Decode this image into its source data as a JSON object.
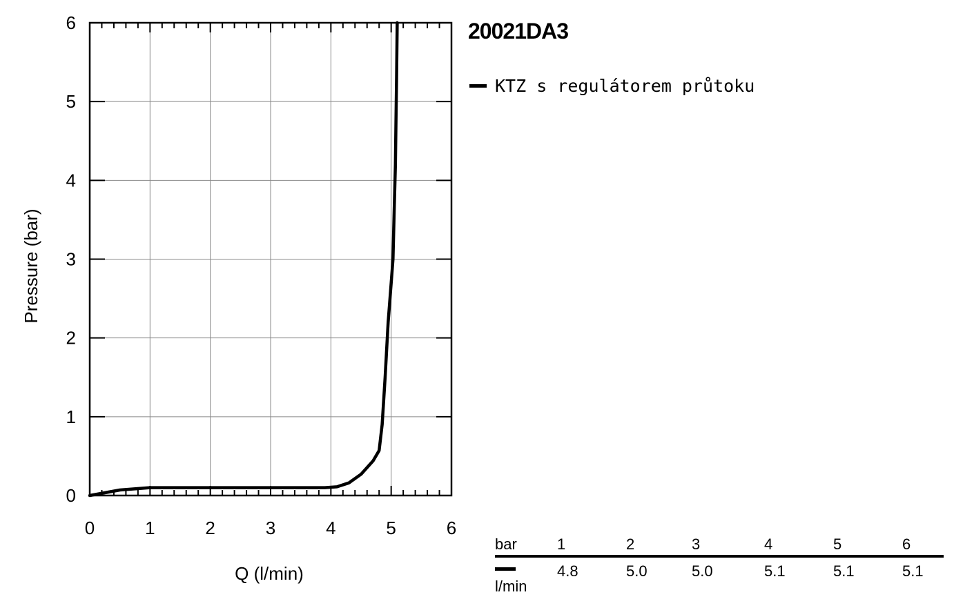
{
  "title": "20021DA3",
  "legend": {
    "label": "KTZ s regulátorem průtoku"
  },
  "chart_data": {
    "type": "line",
    "xlabel": "Q (l/min)",
    "ylabel": "Pressure (bar)",
    "xlim": [
      0,
      6
    ],
    "ylim": [
      0,
      6
    ],
    "x_ticks": [
      "0",
      "1",
      "2",
      "3",
      "4",
      "5",
      "6"
    ],
    "y_ticks": [
      "0",
      "1",
      "2",
      "3",
      "4",
      "5",
      "6"
    ],
    "grid": true,
    "legend_position": "top-right, outside plot",
    "series": [
      {
        "name": "KTZ s regulátorem průtoku",
        "color": "#000000",
        "x": [
          0,
          0.5,
          1,
          2,
          3,
          3.9,
          4.1,
          4.3,
          4.5,
          4.7,
          4.8,
          4.85,
          4.9,
          4.95,
          5.0,
          5.03,
          5.05,
          5.07,
          5.08,
          5.09,
          5.1
        ],
        "y": [
          0,
          0.07,
          0.1,
          0.1,
          0.1,
          0.1,
          0.11,
          0.16,
          0.27,
          0.44,
          0.57,
          0.9,
          1.5,
          2.2,
          2.7,
          3.0,
          3.6,
          4.2,
          4.8,
          5.3,
          6.0
        ]
      }
    ]
  },
  "table": {
    "header_label": "bar",
    "units_label": "l/min",
    "pressures": [
      "1",
      "2",
      "3",
      "4",
      "5",
      "6"
    ],
    "flows": [
      "4.8",
      "5.0",
      "5.0",
      "5.1",
      "5.1",
      "5.1"
    ]
  }
}
